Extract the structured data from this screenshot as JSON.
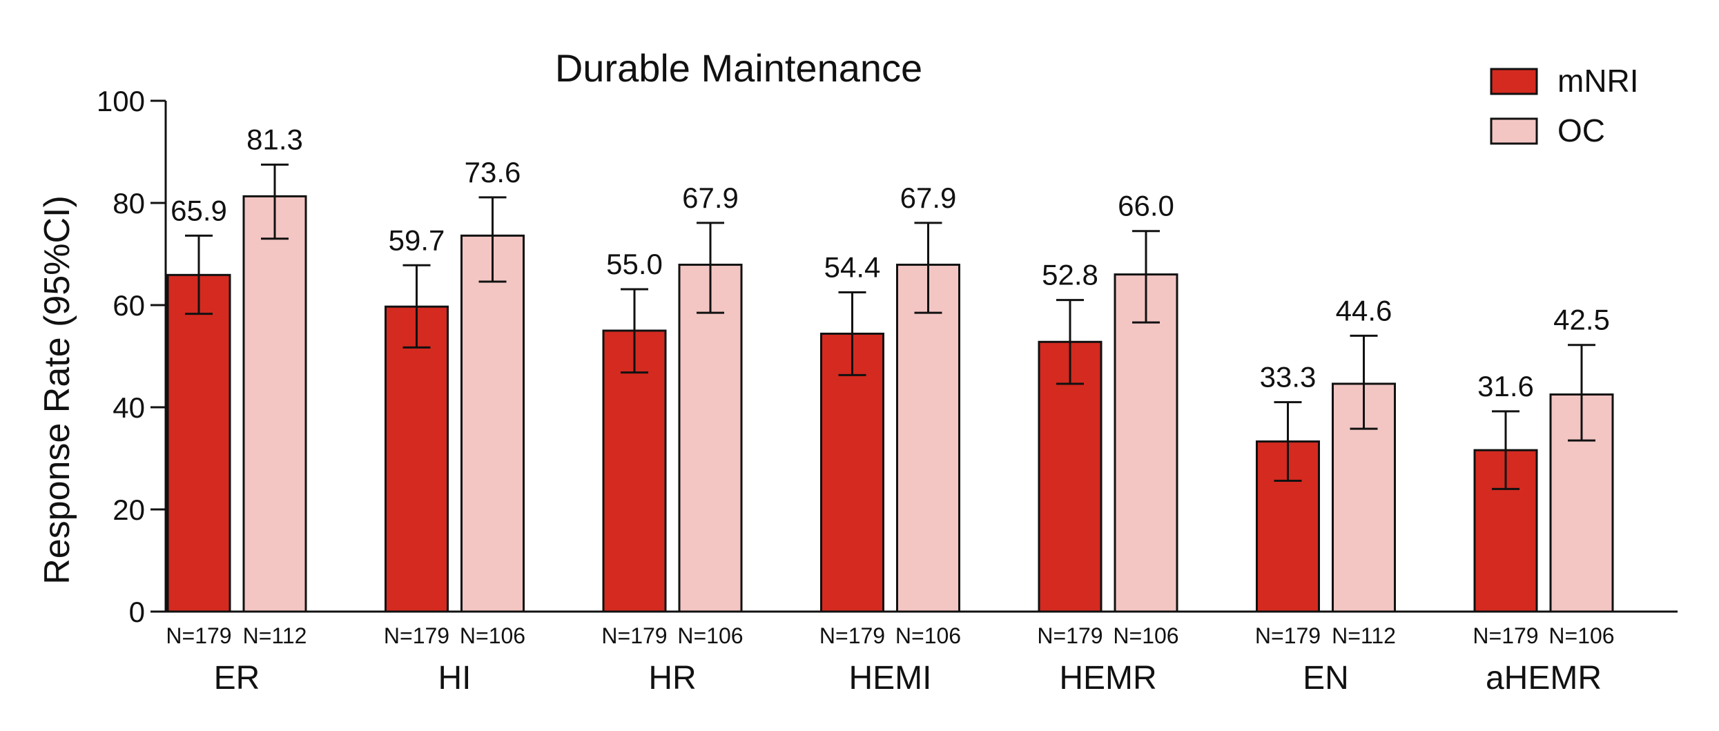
{
  "chart_data": {
    "type": "bar",
    "title": "Durable Maintenance",
    "ylabel": "Response Rate (95%CI)",
    "xlabel": "",
    "ylim": [
      0,
      100
    ],
    "yticks": [
      0,
      20,
      40,
      60,
      80,
      100
    ],
    "grid": false,
    "legend_position": "top-right",
    "categories": [
      "ER",
      "HI",
      "HR",
      "HEMI",
      "HEMR",
      "EN",
      "aHEMR"
    ],
    "series": [
      {
        "name": "mNRI",
        "color": "#d42a20",
        "values": [
          65.9,
          59.7,
          55.0,
          54.4,
          52.8,
          33.3,
          31.6
        ],
        "labels": [
          "65.9",
          "59.7",
          "55.0",
          "54.4",
          "52.8",
          "33.3",
          "31.6"
        ],
        "ci_low": [
          58.3,
          51.7,
          46.8,
          46.3,
          44.6,
          25.6,
          24.0
        ],
        "ci_high": [
          73.6,
          67.8,
          63.1,
          62.5,
          61.0,
          41.0,
          39.2
        ],
        "n": [
          "N=179",
          "N=179",
          "N=179",
          "N=179",
          "N=179",
          "N=179",
          "N=179"
        ]
      },
      {
        "name": "OC",
        "color": "#f3c6c3",
        "values": [
          81.3,
          73.6,
          67.9,
          67.9,
          66.0,
          44.6,
          42.5
        ],
        "labels": [
          "81.3",
          "73.6",
          "67.9",
          "67.9",
          "66.0",
          "44.6",
          "42.5"
        ],
        "ci_low": [
          73.0,
          64.6,
          58.5,
          58.5,
          56.6,
          35.8,
          33.5
        ],
        "ci_high": [
          87.5,
          81.1,
          76.1,
          76.1,
          74.5,
          54.0,
          52.2
        ],
        "n": [
          "N=112",
          "N=106",
          "N=106",
          "N=106",
          "N=106",
          "N=112",
          "N=106"
        ]
      }
    ]
  }
}
